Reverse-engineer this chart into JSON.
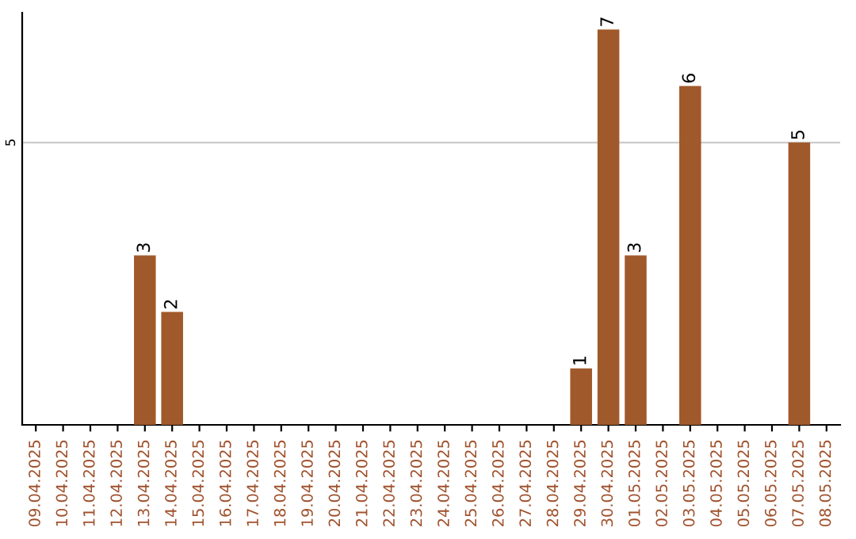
{
  "chart_data": {
    "type": "bar",
    "categories": [
      "09.04.2025",
      "10.04.2025",
      "11.04.2025",
      "12.04.2025",
      "13.04.2025",
      "14.04.2025",
      "15.04.2025",
      "16.04.2025",
      "17.04.2025",
      "18.04.2025",
      "19.04.2025",
      "20.04.2025",
      "21.04.2025",
      "22.04.2025",
      "23.04.2025",
      "24.04.2025",
      "25.04.2025",
      "26.04.2025",
      "27.04.2025",
      "28.04.2025",
      "29.04.2025",
      "30.04.2025",
      "01.05.2025",
      "02.05.2025",
      "03.05.2025",
      "04.05.2025",
      "05.05.2025",
      "06.05.2025",
      "07.05.2025",
      "08.05.2025"
    ],
    "values": [
      0,
      0,
      0,
      0,
      3,
      2,
      0,
      0,
      0,
      0,
      0,
      0,
      0,
      0,
      0,
      0,
      0,
      0,
      0,
      0,
      1,
      7,
      3,
      0,
      6,
      0,
      0,
      0,
      5,
      0
    ],
    "value_labels": [
      null,
      null,
      null,
      null,
      "3",
      "2",
      null,
      null,
      null,
      null,
      null,
      null,
      null,
      null,
      null,
      null,
      null,
      null,
      null,
      null,
      "1",
      "7",
      "3",
      null,
      "6",
      null,
      null,
      null,
      "5",
      null
    ],
    "color": "#a0592a",
    "ylim": [
      0,
      7.3
    ],
    "yticks": [
      5
    ],
    "grid": "y",
    "legend": false
  }
}
